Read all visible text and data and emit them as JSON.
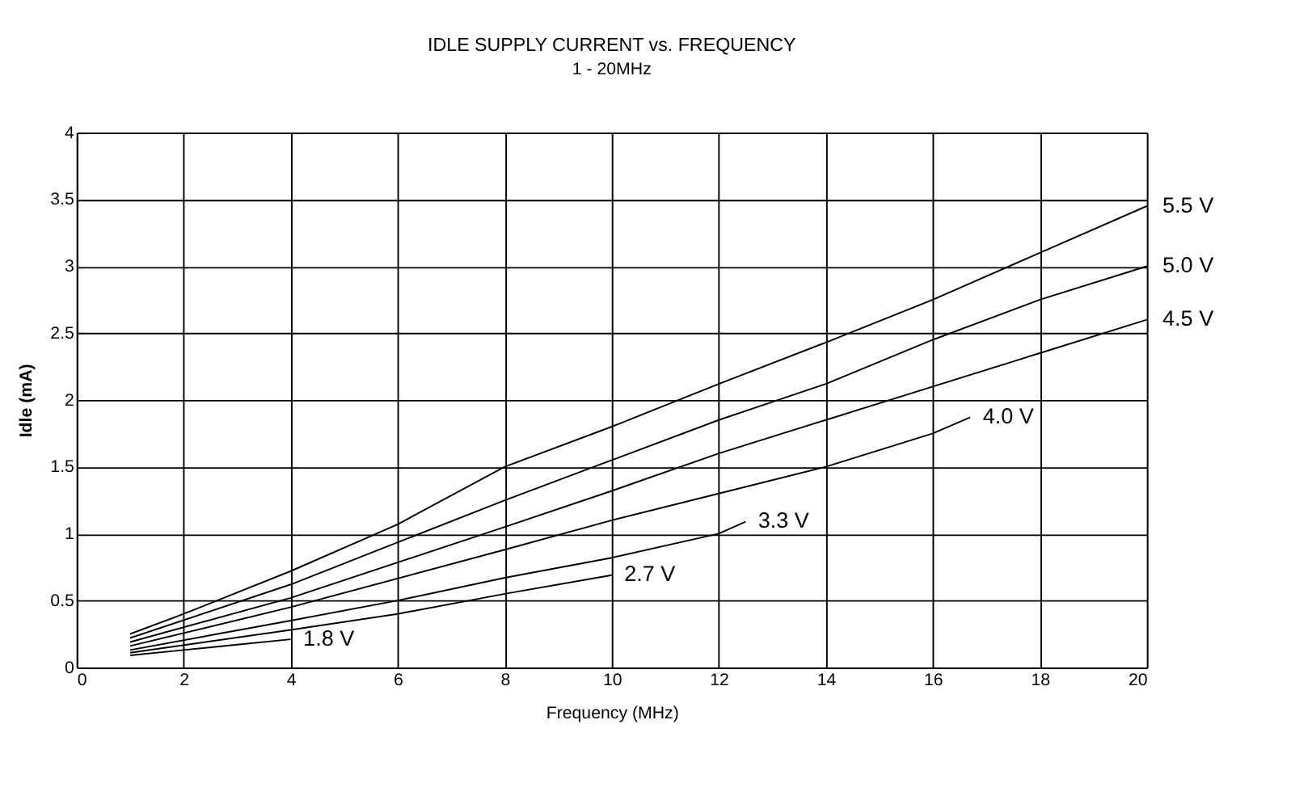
{
  "chart_data": {
    "type": "line",
    "title": "IDLE SUPPLY CURRENT vs. FREQUENCY",
    "subtitle": "1 - 20MHz",
    "xlabel": "Frequency (MHz)",
    "ylabel": "Idle (mA)",
    "xlim": [
      0,
      20
    ],
    "xticks": [
      0,
      2,
      4,
      6,
      8,
      10,
      12,
      14,
      16,
      18,
      20
    ],
    "ylim": [
      0,
      4
    ],
    "yticks": [
      0,
      0.5,
      1,
      1.5,
      2,
      2.5,
      3,
      3.5,
      4
    ],
    "grid": true,
    "marker": "none",
    "line_style": "solid",
    "series": [
      {
        "name": "5.5 V",
        "color": "#000000",
        "x": [
          1,
          2,
          4,
          6,
          8,
          10,
          12,
          14,
          16,
          18,
          20
        ],
        "values": [
          0.25,
          0.4,
          0.72,
          1.07,
          1.5,
          1.8,
          2.12,
          2.43,
          2.75,
          3.1,
          3.45
        ]
      },
      {
        "name": "5.0 V",
        "color": "#000000",
        "x": [
          1,
          4,
          8,
          10,
          12,
          14,
          16,
          18,
          20
        ],
        "values": [
          0.22,
          0.62,
          1.25,
          1.55,
          1.85,
          2.12,
          2.45,
          2.75,
          3.0
        ]
      },
      {
        "name": "4.5 V",
        "color": "#000000",
        "x": [
          1,
          4,
          8,
          10,
          12,
          14,
          16,
          18,
          20
        ],
        "values": [
          0.19,
          0.52,
          1.05,
          1.32,
          1.6,
          1.85,
          2.1,
          2.35,
          2.6
        ]
      },
      {
        "name": "4.0 V",
        "color": "#000000",
        "x": [
          1,
          4,
          8,
          10,
          12,
          14,
          16,
          16.7
        ],
        "values": [
          0.16,
          0.45,
          0.88,
          1.1,
          1.3,
          1.5,
          1.75,
          1.87
        ]
      },
      {
        "name": "3.3 V",
        "color": "#000000",
        "x": [
          1,
          4,
          6,
          8,
          10,
          12,
          12.5
        ],
        "values": [
          0.13,
          0.35,
          0.5,
          0.67,
          0.82,
          1.0,
          1.09
        ]
      },
      {
        "name": "2.7 V",
        "color": "#000000",
        "x": [
          1,
          4,
          6,
          8,
          10
        ],
        "values": [
          0.11,
          0.28,
          0.4,
          0.55,
          0.69
        ]
      },
      {
        "name": "1.8 V",
        "color": "#000000",
        "x": [
          1,
          2,
          3,
          4
        ],
        "values": [
          0.09,
          0.13,
          0.17,
          0.21
        ]
      }
    ]
  }
}
